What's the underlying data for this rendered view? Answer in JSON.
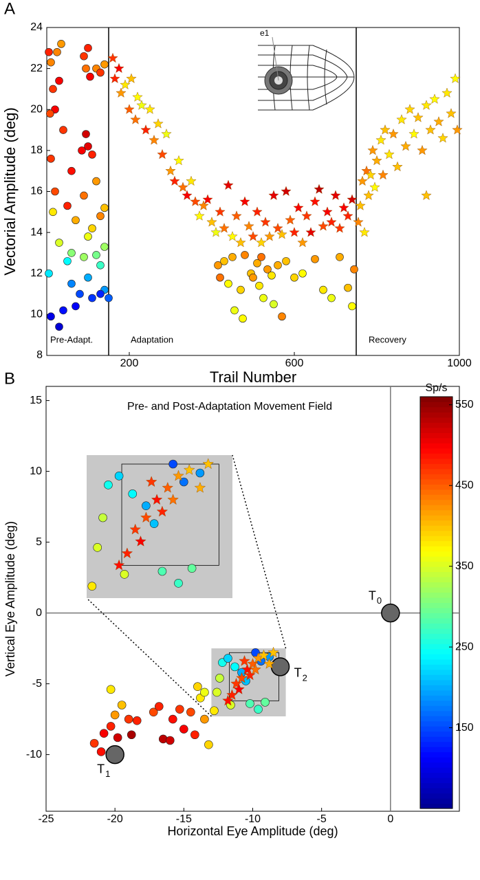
{
  "chart_data": [
    {
      "type": "scatter",
      "panel_label": "A",
      "xlabel": "Trail Number",
      "ylabel": "Vectorial Amplitude (deg)",
      "xlim": [
        0,
        1000
      ],
      "ylim": [
        8,
        24
      ],
      "xticks": [
        200,
        600,
        1000
      ],
      "yticks": [
        8,
        10,
        12,
        14,
        16,
        18,
        20,
        22,
        24
      ],
      "phase_lines": [
        150,
        750
      ],
      "phase_labels": [
        "Pre-Adapt.",
        "Adaptation",
        "Recovery"
      ],
      "schematic_label": "e1",
      "series": [
        {
          "marker": "circle",
          "x": [
            5,
            10,
            15,
            20,
            8,
            25,
            30,
            35,
            90,
            95,
            100,
            105,
            120,
            140,
            130,
            40,
            95,
            100,
            85,
            10,
            110,
            60,
            120,
            20,
            90,
            140,
            15,
            50,
            70,
            110,
            130,
            100,
            30,
            140,
            60,
            90,
            120,
            50,
            130,
            5,
            60,
            100,
            140,
            80,
            110,
            130,
            40,
            70,
            10,
            30,
            150
          ],
          "y": [
            22.8,
            22.3,
            21.0,
            20.0,
            19.8,
            22.8,
            21.4,
            23.2,
            22.6,
            22.0,
            23.0,
            21.6,
            22.0,
            22.2,
            21.8,
            19.0,
            18.8,
            18.2,
            18.0,
            17.6,
            17.8,
            17.0,
            16.5,
            16.0,
            15.8,
            15.2,
            15.0,
            15.3,
            14.6,
            14.2,
            14.8,
            13.8,
            13.5,
            13.3,
            13.0,
            12.8,
            12.9,
            12.6,
            12.4,
            12.0,
            11.5,
            11.8,
            11.2,
            11.0,
            10.8,
            11.0,
            10.2,
            10.4,
            9.9,
            9.4,
            10.8
          ],
          "rates": [
            480,
            430,
            470,
            500,
            460,
            430,
            500,
            420,
            470,
            440,
            480,
            500,
            430,
            420,
            470,
            470,
            520,
            510,
            500,
            470,
            480,
            490,
            420,
            460,
            440,
            400,
            380,
            480,
            410,
            390,
            430,
            360,
            350,
            320,
            310,
            320,
            300,
            240,
            270,
            230,
            180,
            200,
            190,
            150,
            140,
            130,
            120,
            110,
            100,
            90,
            160
          ]
        },
        {
          "marker": "star",
          "x": [
            160,
            165,
            175,
            180,
            190,
            200,
            205,
            215,
            220,
            230,
            240,
            250,
            260,
            270,
            280,
            290,
            300,
            310,
            320,
            330,
            340,
            350,
            360,
            370,
            380,
            390,
            400,
            410,
            420,
            430,
            440,
            450,
            460,
            470,
            480,
            490,
            500,
            510,
            520,
            530,
            540,
            550,
            560,
            570,
            580,
            590,
            600,
            610,
            620,
            630,
            640,
            650,
            660,
            670,
            680,
            690,
            700,
            710,
            720,
            730,
            740
          ],
          "y": [
            22.5,
            21.5,
            22.0,
            20.8,
            21.2,
            20.0,
            21.5,
            19.5,
            20.6,
            20.2,
            19.0,
            20.0,
            18.5,
            19.3,
            17.8,
            18.8,
            17.0,
            16.5,
            17.5,
            16.2,
            15.8,
            16.5,
            15.5,
            14.8,
            15.3,
            15.6,
            14.5,
            14.0,
            15.0,
            14.2,
            16.3,
            13.8,
            14.8,
            13.5,
            15.5,
            14.3,
            13.8,
            15.0,
            13.5,
            14.5,
            13.8,
            15.8,
            14.2,
            13.9,
            16.0,
            14.6,
            14.0,
            15.2,
            13.5,
            14.8,
            14.0,
            15.5,
            16.1,
            14.3,
            15.0,
            14.5,
            15.8,
            14.2,
            15.2,
            14.8,
            15.6
          ],
          "rates": [
            470,
            480,
            500,
            420,
            380,
            450,
            400,
            440,
            370,
            360,
            480,
            380,
            430,
            390,
            460,
            360,
            420,
            480,
            370,
            440,
            500,
            380,
            460,
            370,
            430,
            500,
            400,
            360,
            470,
            440,
            510,
            370,
            450,
            400,
            500,
            430,
            460,
            480,
            390,
            470,
            420,
            510,
            460,
            400,
            520,
            450,
            480,
            500,
            420,
            470,
            510,
            490,
            530,
            460,
            500,
            480,
            510,
            470,
            500,
            480,
            520
          ]
        },
        {
          "marker": "star",
          "x": [
            755,
            760,
            765,
            770,
            775,
            780,
            785,
            790,
            795,
            800,
            810,
            815,
            820,
            830,
            840,
            850,
            860,
            870,
            880,
            890,
            900,
            910,
            920,
            930,
            940,
            950,
            960,
            970,
            980,
            990,
            995,
            920
          ],
          "y": [
            14.5,
            15.3,
            16.5,
            14.0,
            17.0,
            15.8,
            16.8,
            18.0,
            16.2,
            17.5,
            18.5,
            16.8,
            19.0,
            17.8,
            18.8,
            17.2,
            19.5,
            18.2,
            20.0,
            18.8,
            19.6,
            18.0,
            20.2,
            19.0,
            20.5,
            19.4,
            18.6,
            20.8,
            19.8,
            21.5,
            19.0,
            15.8
          ],
          "rates": [
            430,
            400,
            420,
            380,
            440,
            400,
            390,
            420,
            370,
            410,
            380,
            430,
            400,
            380,
            420,
            400,
            380,
            410,
            390,
            370,
            400,
            420,
            380,
            400,
            370,
            410,
            390,
            380,
            400,
            370,
            420,
            400
          ]
        },
        {
          "marker": "circle",
          "x": [
            415,
            420,
            430,
            440,
            450,
            455,
            470,
            475,
            480,
            495,
            500,
            510,
            515,
            520,
            525,
            535,
            545,
            550,
            560,
            570,
            580,
            600,
            620,
            650,
            670,
            690,
            710,
            730,
            740,
            745
          ],
          "y": [
            12.4,
            11.8,
            12.6,
            11.5,
            12.8,
            10.2,
            11.2,
            9.8,
            12.9,
            12.0,
            11.8,
            12.5,
            11.4,
            12.8,
            10.8,
            12.2,
            11.9,
            10.5,
            12.4,
            9.9,
            12.6,
            11.8,
            12.0,
            12.7,
            11.2,
            10.8,
            12.8,
            11.3,
            10.4,
            12.2
          ],
          "rates": [
            420,
            440,
            400,
            370,
            410,
            360,
            390,
            370,
            430,
            400,
            420,
            410,
            380,
            440,
            360,
            420,
            380,
            350,
            410,
            430,
            400,
            390,
            370,
            420,
            380,
            360,
            410,
            400,
            370,
            430
          ]
        }
      ]
    },
    {
      "type": "scatter",
      "panel_label": "B",
      "title": "Pre- and Post-Adaptation Movement Field",
      "xlabel": "Horizontal Eye Amplitude (deg)",
      "ylabel": "Vertical Eye Amplitude (deg)",
      "xlim": [
        -25,
        5
      ],
      "ylim": [
        -14,
        16
      ],
      "xticks": [
        -25,
        -20,
        -15,
        -10,
        -5,
        0
      ],
      "yticks": [
        -10,
        -5,
        0,
        5,
        10,
        15
      ],
      "zero_lines": true,
      "inset_xlim": [
        -13,
        -7.6
      ],
      "inset_ylim": [
        -7.3,
        -2.5
      ],
      "inset_inner_xlim": [
        -11.7,
        -8.1
      ],
      "inset_inner_ylim": [
        -6.2,
        -2.8
      ],
      "targets": [
        {
          "label": "T",
          "sub": "0",
          "x": 0,
          "y": 0
        },
        {
          "label": "T",
          "sub": "1",
          "x": -20,
          "y": -10
        },
        {
          "label": "T",
          "sub": "2",
          "x": -8,
          "y": -3.8
        }
      ],
      "colorbar": {
        "label": "Sp/s",
        "clim": [
          50,
          560
        ],
        "ticks": [
          150,
          250,
          350,
          450,
          550
        ],
        "colormap": [
          "#00008f",
          "#0000ff",
          "#0080ff",
          "#00ffff",
          "#80ff80",
          "#ffff00",
          "#ff8000",
          "#ff0000",
          "#800000"
        ]
      },
      "series": [
        {
          "marker": "circle",
          "x": [
            -21.5,
            -21,
            -20.8,
            -20.3,
            -19.8,
            -20.0,
            -20.3,
            -19.5,
            -19,
            -18.8,
            -18.4,
            -17.2,
            -16.8,
            -16.5,
            -16.0,
            -15.8,
            -15.3,
            -15.0,
            -14.5,
            -14.2,
            -14.0,
            -13.8,
            -13.5,
            -13.2,
            -13.5,
            -12.8,
            -12.6,
            -12.4,
            -12.2,
            -11.8,
            -11.3,
            -10.8,
            -10.5,
            -9.8,
            -9.4,
            -8.8,
            -10.2,
            -9.6,
            -11.6,
            -9.1
          ],
          "y": [
            -9.2,
            -9.8,
            -8.5,
            -8.0,
            -8.8,
            -7.2,
            -5.4,
            -6.5,
            -7.5,
            -8.6,
            -7.6,
            -7.0,
            -6.6,
            -8.9,
            -9.0,
            -7.5,
            -6.8,
            -8.2,
            -7.0,
            -8.6,
            -5.2,
            -6.0,
            -7.5,
            -9.3,
            -5.6,
            -6.9,
            -5.6,
            -4.6,
            -3.5,
            -3.2,
            -3.8,
            -4.2,
            -4.8,
            -2.8,
            -3.4,
            -3.1,
            -6.4,
            -6.8,
            -6.5,
            -6.3
          ],
          "rates": [
            470,
            490,
            500,
            480,
            520,
            420,
            380,
            400,
            470,
            540,
            480,
            460,
            480,
            530,
            520,
            490,
            470,
            500,
            460,
            480,
            390,
            380,
            420,
            390,
            360,
            380,
            350,
            340,
            250,
            220,
            240,
            200,
            210,
            150,
            170,
            190,
            280,
            270,
            350,
            290
          ]
        },
        {
          "marker": "star",
          "x": [
            -11.5,
            -11.2,
            -10.8,
            -10.4,
            -10.0,
            -9.6,
            -9.2,
            -11.0,
            -10.2,
            -9.8,
            -8.8,
            -11.8,
            -10.6,
            -8.5
          ],
          "y": [
            -5.8,
            -5.0,
            -4.6,
            -4.0,
            -3.6,
            -3.2,
            -3.0,
            -5.4,
            -4.4,
            -4.0,
            -3.6,
            -6.2,
            -3.4,
            -2.8
          ],
          "rates": [
            480,
            470,
            460,
            490,
            450,
            420,
            400,
            500,
            480,
            440,
            410,
            490,
            470,
            400
          ]
        }
      ]
    }
  ]
}
